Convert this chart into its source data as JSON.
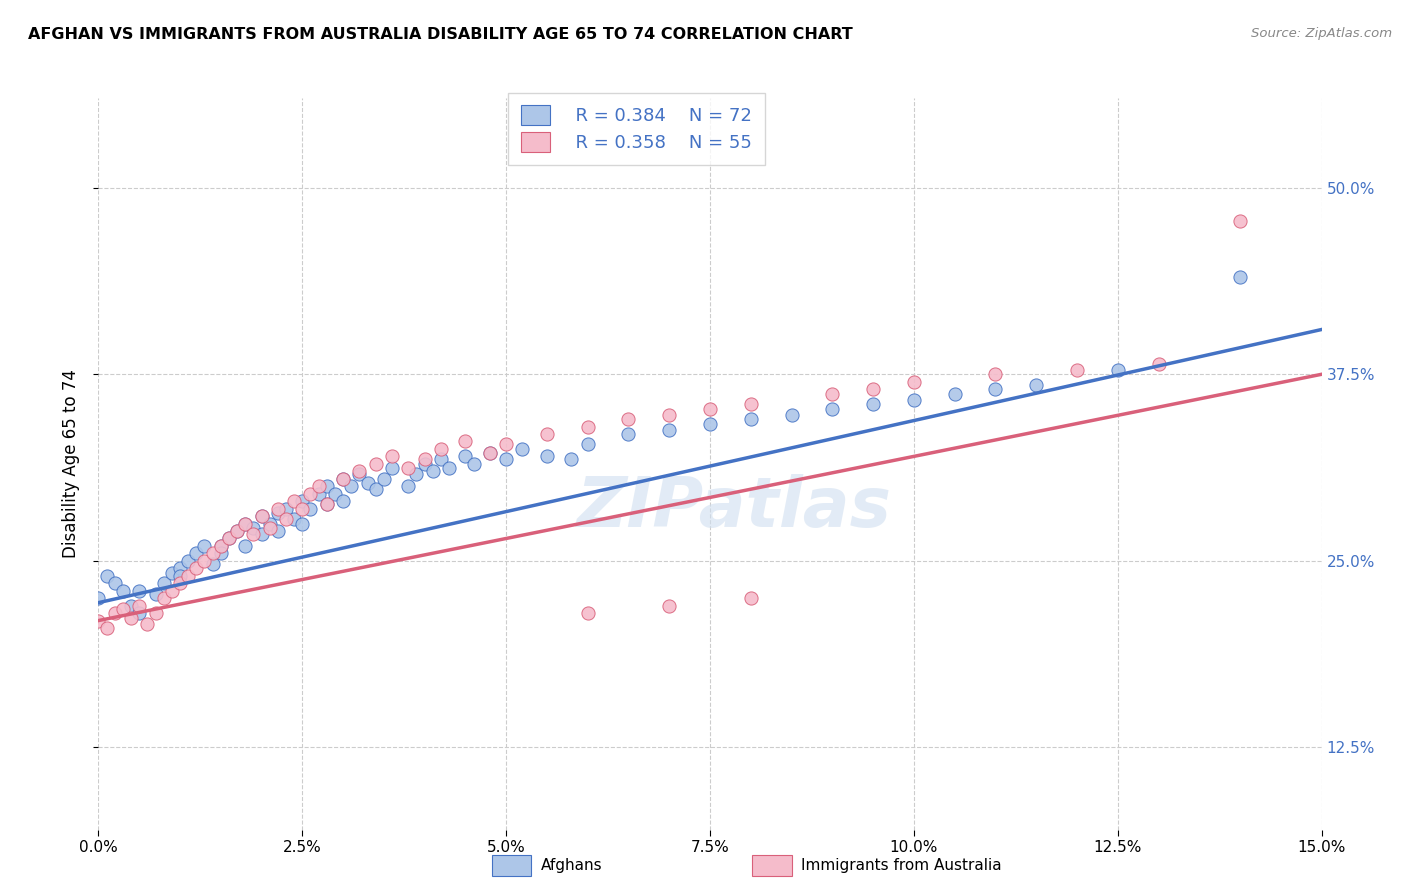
{
  "title": "AFGHAN VS IMMIGRANTS FROM AUSTRALIA DISABILITY AGE 65 TO 74 CORRELATION CHART",
  "source": "Source: ZipAtlas.com",
  "ylabel": "Disability Age 65 to 74",
  "ytick_values": [
    0.125,
    0.25,
    0.375,
    0.5
  ],
  "legend_blue_R": "R = 0.384",
  "legend_blue_N": "N = 72",
  "legend_pink_R": "R = 0.358",
  "legend_pink_N": "N = 55",
  "legend_label_blue": "Afghans",
  "legend_label_pink": "Immigrants from Australia",
  "blue_color": "#adc6e8",
  "pink_color": "#f5bccb",
  "blue_line_color": "#4472c4",
  "pink_line_color": "#d9607a",
  "watermark": "ZIPatlas",
  "blue_scatter_x": [
    0.0,
    0.001,
    0.002,
    0.003,
    0.004,
    0.005,
    0.005,
    0.007,
    0.008,
    0.009,
    0.01,
    0.01,
    0.011,
    0.012,
    0.013,
    0.014,
    0.015,
    0.015,
    0.016,
    0.017,
    0.018,
    0.018,
    0.019,
    0.02,
    0.02,
    0.021,
    0.022,
    0.022,
    0.023,
    0.024,
    0.025,
    0.025,
    0.026,
    0.027,
    0.028,
    0.028,
    0.029,
    0.03,
    0.03,
    0.031,
    0.032,
    0.033,
    0.034,
    0.035,
    0.036,
    0.038,
    0.039,
    0.04,
    0.041,
    0.042,
    0.043,
    0.045,
    0.046,
    0.048,
    0.05,
    0.052,
    0.055,
    0.058,
    0.06,
    0.065,
    0.07,
    0.075,
    0.08,
    0.085,
    0.09,
    0.095,
    0.1,
    0.105,
    0.11,
    0.115,
    0.125,
    0.14
  ],
  "blue_scatter_y": [
    0.225,
    0.24,
    0.235,
    0.23,
    0.22,
    0.215,
    0.23,
    0.228,
    0.235,
    0.242,
    0.245,
    0.24,
    0.25,
    0.255,
    0.26,
    0.248,
    0.26,
    0.255,
    0.265,
    0.27,
    0.275,
    0.26,
    0.272,
    0.268,
    0.28,
    0.275,
    0.282,
    0.27,
    0.285,
    0.278,
    0.29,
    0.275,
    0.285,
    0.295,
    0.3,
    0.288,
    0.295,
    0.305,
    0.29,
    0.3,
    0.308,
    0.302,
    0.298,
    0.305,
    0.312,
    0.3,
    0.308,
    0.315,
    0.31,
    0.318,
    0.312,
    0.32,
    0.315,
    0.322,
    0.318,
    0.325,
    0.32,
    0.318,
    0.328,
    0.335,
    0.338,
    0.342,
    0.345,
    0.348,
    0.352,
    0.355,
    0.358,
    0.362,
    0.365,
    0.368,
    0.378,
    0.44
  ],
  "pink_scatter_x": [
    0.0,
    0.001,
    0.002,
    0.003,
    0.004,
    0.005,
    0.006,
    0.007,
    0.008,
    0.009,
    0.01,
    0.011,
    0.012,
    0.013,
    0.014,
    0.015,
    0.016,
    0.017,
    0.018,
    0.019,
    0.02,
    0.021,
    0.022,
    0.023,
    0.024,
    0.025,
    0.026,
    0.027,
    0.028,
    0.03,
    0.032,
    0.034,
    0.036,
    0.038,
    0.04,
    0.042,
    0.045,
    0.048,
    0.05,
    0.055,
    0.06,
    0.065,
    0.07,
    0.075,
    0.08,
    0.09,
    0.095,
    0.1,
    0.11,
    0.12,
    0.13,
    0.14,
    0.06,
    0.07,
    0.08
  ],
  "pink_scatter_y": [
    0.21,
    0.205,
    0.215,
    0.218,
    0.212,
    0.22,
    0.208,
    0.215,
    0.225,
    0.23,
    0.235,
    0.24,
    0.245,
    0.25,
    0.255,
    0.26,
    0.265,
    0.27,
    0.275,
    0.268,
    0.28,
    0.272,
    0.285,
    0.278,
    0.29,
    0.285,
    0.295,
    0.3,
    0.288,
    0.305,
    0.31,
    0.315,
    0.32,
    0.312,
    0.318,
    0.325,
    0.33,
    0.322,
    0.328,
    0.335,
    0.34,
    0.345,
    0.348,
    0.352,
    0.355,
    0.362,
    0.365,
    0.37,
    0.375,
    0.378,
    0.382,
    0.478,
    0.215,
    0.22,
    0.225
  ],
  "xlim": [
    0.0,
    0.15
  ],
  "ylim": [
    0.07,
    0.56
  ],
  "blue_line_x": [
    0.0,
    0.15
  ],
  "blue_line_y": [
    0.222,
    0.405
  ],
  "pink_line_x": [
    0.0,
    0.15
  ],
  "pink_line_y": [
    0.21,
    0.375
  ]
}
